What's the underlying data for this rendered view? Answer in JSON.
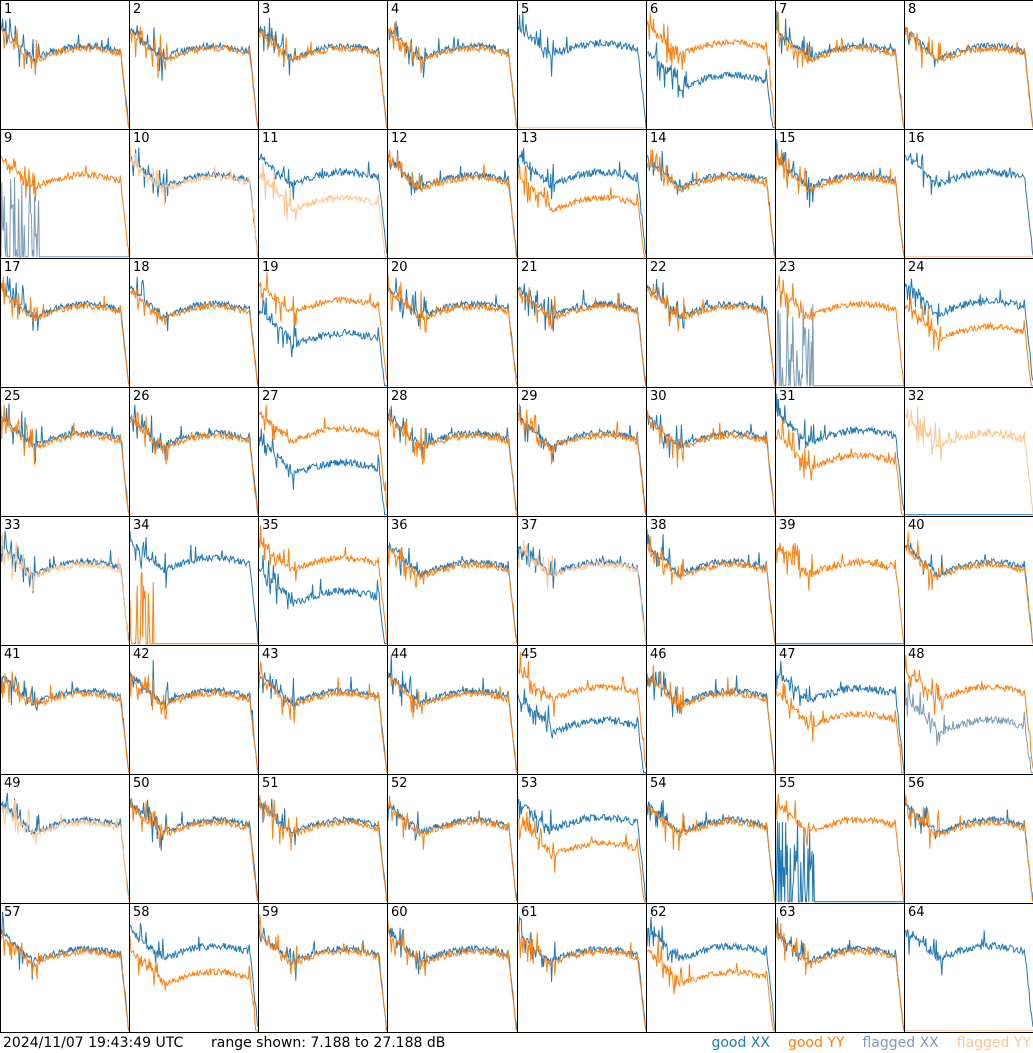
{
  "chart_data": {
    "type": "line",
    "grid": {
      "rows": 8,
      "cols": 8
    },
    "panels": [
      {
        "label": "1",
        "xx": "good",
        "yy": "good",
        "shape": "std"
      },
      {
        "label": "2",
        "xx": "good",
        "yy": "good",
        "shape": "std"
      },
      {
        "label": "3",
        "xx": "good",
        "yy": "good",
        "shape": "std"
      },
      {
        "label": "4",
        "xx": "good",
        "yy": "good",
        "shape": "std"
      },
      {
        "label": "5",
        "xx": "good",
        "yy": "flagged",
        "shape": "xx_only"
      },
      {
        "label": "6",
        "xx": "good",
        "yy": "good",
        "shape": "xx_low"
      },
      {
        "label": "7",
        "xx": "good",
        "yy": "good",
        "shape": "std"
      },
      {
        "label": "8",
        "xx": "good",
        "yy": "good",
        "shape": "std"
      },
      {
        "label": "9",
        "xx": "flagged",
        "yy": "good",
        "shape": "xx_spiky"
      },
      {
        "label": "10",
        "xx": "good",
        "yy": "flagged",
        "shape": "std"
      },
      {
        "label": "11",
        "xx": "good",
        "yy": "flagged",
        "shape": "yy_low"
      },
      {
        "label": "12",
        "xx": "good",
        "yy": "good",
        "shape": "std"
      },
      {
        "label": "13",
        "xx": "good",
        "yy": "good",
        "shape": "yy_low"
      },
      {
        "label": "14",
        "xx": "good",
        "yy": "good",
        "shape": "std"
      },
      {
        "label": "15",
        "xx": "good",
        "yy": "good",
        "shape": "std"
      },
      {
        "label": "16",
        "xx": "good",
        "yy": "flagged",
        "shape": "xx_only"
      },
      {
        "label": "17",
        "xx": "good",
        "yy": "good",
        "shape": "std"
      },
      {
        "label": "18",
        "xx": "good",
        "yy": "good",
        "shape": "std"
      },
      {
        "label": "19",
        "xx": "good",
        "yy": "good",
        "shape": "xx_low"
      },
      {
        "label": "20",
        "xx": "good",
        "yy": "good",
        "shape": "std"
      },
      {
        "label": "21",
        "xx": "good",
        "yy": "good",
        "shape": "std"
      },
      {
        "label": "22",
        "xx": "good",
        "yy": "good",
        "shape": "std"
      },
      {
        "label": "23",
        "xx": "flagged",
        "yy": "good",
        "shape": "xx_spiky"
      },
      {
        "label": "24",
        "xx": "good",
        "yy": "good",
        "shape": "yy_low"
      },
      {
        "label": "25",
        "xx": "good",
        "yy": "good",
        "shape": "std"
      },
      {
        "label": "26",
        "xx": "good",
        "yy": "good",
        "shape": "std"
      },
      {
        "label": "27",
        "xx": "good",
        "yy": "good",
        "shape": "xx_low"
      },
      {
        "label": "28",
        "xx": "good",
        "yy": "good",
        "shape": "std"
      },
      {
        "label": "29",
        "xx": "good",
        "yy": "good",
        "shape": "std"
      },
      {
        "label": "30",
        "xx": "good",
        "yy": "good",
        "shape": "std"
      },
      {
        "label": "31",
        "xx": "good",
        "yy": "good",
        "shape": "yy_low"
      },
      {
        "label": "32",
        "xx": "good",
        "yy": "flagged",
        "shape": "yy_only"
      },
      {
        "label": "33",
        "xx": "good",
        "yy": "flagged",
        "shape": "std"
      },
      {
        "label": "34",
        "xx": "good",
        "yy": "good",
        "shape": "yy_spiky"
      },
      {
        "label": "35",
        "xx": "good",
        "yy": "good",
        "shape": "xx_low"
      },
      {
        "label": "36",
        "xx": "good",
        "yy": "good",
        "shape": "std"
      },
      {
        "label": "37",
        "xx": "good",
        "yy": "flagged",
        "shape": "std"
      },
      {
        "label": "38",
        "xx": "good",
        "yy": "good",
        "shape": "std"
      },
      {
        "label": "39",
        "xx": "good",
        "yy": "good",
        "shape": "yy_only"
      },
      {
        "label": "40",
        "xx": "good",
        "yy": "good",
        "shape": "std"
      },
      {
        "label": "41",
        "xx": "good",
        "yy": "good",
        "shape": "std"
      },
      {
        "label": "42",
        "xx": "good",
        "yy": "good",
        "shape": "std"
      },
      {
        "label": "43",
        "xx": "good",
        "yy": "good",
        "shape": "std"
      },
      {
        "label": "44",
        "xx": "good",
        "yy": "good",
        "shape": "std"
      },
      {
        "label": "45",
        "xx": "good",
        "yy": "good",
        "shape": "xx_low"
      },
      {
        "label": "46",
        "xx": "good",
        "yy": "good",
        "shape": "std"
      },
      {
        "label": "47",
        "xx": "good",
        "yy": "good",
        "shape": "yy_low"
      },
      {
        "label": "48",
        "xx": "flagged",
        "yy": "good",
        "shape": "xx_low"
      },
      {
        "label": "49",
        "xx": "good",
        "yy": "flagged",
        "shape": "std"
      },
      {
        "label": "50",
        "xx": "good",
        "yy": "good",
        "shape": "std"
      },
      {
        "label": "51",
        "xx": "good",
        "yy": "good",
        "shape": "std"
      },
      {
        "label": "52",
        "xx": "good",
        "yy": "good",
        "shape": "std"
      },
      {
        "label": "53",
        "xx": "good",
        "yy": "good",
        "shape": "yy_low"
      },
      {
        "label": "54",
        "xx": "good",
        "yy": "good",
        "shape": "std"
      },
      {
        "label": "55",
        "xx": "good",
        "yy": "good",
        "shape": "xx_spiky"
      },
      {
        "label": "56",
        "xx": "good",
        "yy": "good",
        "shape": "std"
      },
      {
        "label": "57",
        "xx": "good",
        "yy": "good",
        "shape": "std"
      },
      {
        "label": "58",
        "xx": "good",
        "yy": "good",
        "shape": "yy_low"
      },
      {
        "label": "59",
        "xx": "good",
        "yy": "good",
        "shape": "std"
      },
      {
        "label": "60",
        "xx": "good",
        "yy": "good",
        "shape": "std"
      },
      {
        "label": "61",
        "xx": "good",
        "yy": "good",
        "shape": "std"
      },
      {
        "label": "62",
        "xx": "good",
        "yy": "good",
        "shape": "yy_low"
      },
      {
        "label": "63",
        "xx": "good",
        "yy": "good",
        "shape": "std"
      },
      {
        "label": "64",
        "xx": "good",
        "yy": "flagged",
        "shape": "xx_only"
      }
    ],
    "range_db": [
      7.188,
      27.188
    ]
  },
  "footer": {
    "timestamp": "2024/11/07 19:43:49 UTC",
    "range_text": "range shown: 7.188 to 27.188 dB"
  },
  "legend": [
    {
      "label": "good XX",
      "color": "#1f77b4"
    },
    {
      "label": "good YY",
      "color": "#ff7f0e"
    },
    {
      "label": "flagged XX",
      "color": "#7b9bb8"
    },
    {
      "label": "flagged YY",
      "color": "#ffc48f"
    }
  ]
}
